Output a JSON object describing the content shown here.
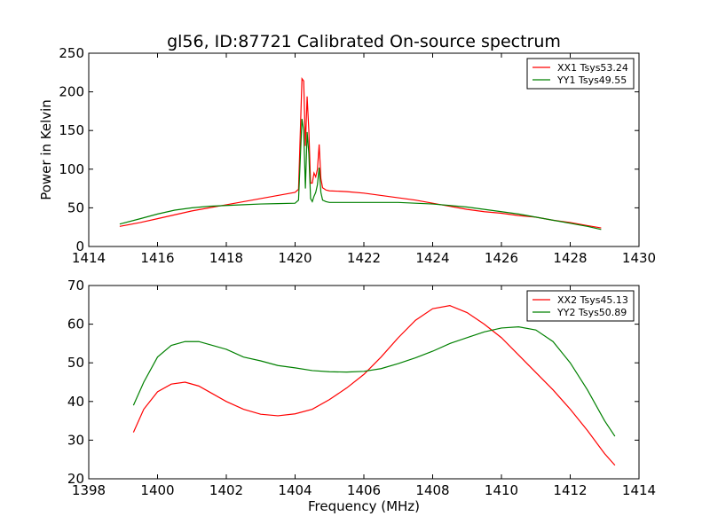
{
  "figure": {
    "title": "gl56, ID:87721 Calibrated On-source spectrum",
    "ylabel": "Power in Kelvin",
    "xlabel": "Frequency (MHz)"
  },
  "chart_data": [
    {
      "type": "line",
      "title": "gl56, ID:87721 Calibrated On-source spectrum",
      "xlabel": "",
      "ylabel": "Power in Kelvin",
      "xlim": [
        1414,
        1430
      ],
      "ylim": [
        0,
        250
      ],
      "xticks": [
        1414,
        1416,
        1418,
        1420,
        1422,
        1424,
        1426,
        1428,
        1430
      ],
      "yticks": [
        0,
        50,
        100,
        150,
        200,
        250
      ],
      "grid": false,
      "legend_position": "top-right",
      "series": [
        {
          "name": "XX1 Tsys53.24",
          "color": "#ff0000",
          "x": [
            1414.9,
            1415.5,
            1416.0,
            1416.5,
            1417.0,
            1417.5,
            1418.0,
            1418.5,
            1419.0,
            1419.5,
            1420.0,
            1420.1,
            1420.2,
            1420.25,
            1420.3,
            1420.35,
            1420.4,
            1420.45,
            1420.5,
            1420.55,
            1420.6,
            1420.65,
            1420.7,
            1420.75,
            1420.8,
            1420.9,
            1421.0,
            1421.5,
            1422.0,
            1422.5,
            1423.0,
            1423.5,
            1424.0,
            1424.5,
            1425.0,
            1425.5,
            1426.0,
            1426.5,
            1427.0,
            1427.5,
            1428.0,
            1428.5,
            1428.9
          ],
          "values": [
            26,
            31,
            36,
            41,
            46,
            50,
            54,
            58,
            62,
            66,
            70,
            74,
            217,
            214,
            130,
            194,
            150,
            82,
            82,
            95,
            90,
            100,
            132,
            88,
            76,
            73,
            72,
            71,
            69,
            66,
            63,
            60,
            56,
            52,
            48,
            45,
            43,
            40,
            38,
            34,
            31,
            27,
            24
          ]
        },
        {
          "name": "YY1 Tsys49.55",
          "color": "#008000",
          "x": [
            1414.9,
            1415.5,
            1416.0,
            1416.5,
            1417.0,
            1417.5,
            1418.0,
            1418.5,
            1419.0,
            1419.5,
            1420.0,
            1420.1,
            1420.2,
            1420.25,
            1420.3,
            1420.35,
            1420.4,
            1420.45,
            1420.5,
            1420.55,
            1420.6,
            1420.65,
            1420.7,
            1420.75,
            1420.8,
            1420.9,
            1421.0,
            1421.5,
            1422.0,
            1422.5,
            1423.0,
            1423.5,
            1424.0,
            1424.5,
            1425.0,
            1425.5,
            1426.0,
            1426.5,
            1427.0,
            1427.5,
            1428.0,
            1428.5,
            1428.9
          ],
          "values": [
            29,
            36,
            42,
            47,
            50,
            52,
            53,
            54,
            55,
            55.5,
            56,
            60,
            165,
            150,
            75,
            148,
            120,
            62,
            58,
            65,
            70,
            80,
            102,
            70,
            60,
            58,
            57,
            57,
            57,
            57,
            57,
            56,
            55,
            53,
            51,
            48,
            45,
            42,
            38,
            34,
            30,
            26,
            22
          ]
        }
      ]
    },
    {
      "type": "line",
      "title": "",
      "xlabel": "Frequency (MHz)",
      "ylabel": "",
      "xlim": [
        1398,
        1414
      ],
      "ylim": [
        20,
        70
      ],
      "xticks": [
        1398,
        1400,
        1402,
        1404,
        1406,
        1408,
        1410,
        1412,
        1414
      ],
      "yticks": [
        20,
        30,
        40,
        50,
        60,
        70
      ],
      "grid": false,
      "legend_position": "top-right",
      "series": [
        {
          "name": "XX2 Tsys45.13",
          "color": "#ff0000",
          "x": [
            1399.3,
            1399.6,
            1400.0,
            1400.4,
            1400.8,
            1401.2,
            1401.6,
            1402.0,
            1402.5,
            1403.0,
            1403.5,
            1404.0,
            1404.5,
            1405.0,
            1405.5,
            1406.0,
            1406.5,
            1407.0,
            1407.5,
            1408.0,
            1408.5,
            1409.0,
            1409.5,
            1410.0,
            1410.5,
            1411.0,
            1411.5,
            1412.0,
            1412.5,
            1413.0,
            1413.3
          ],
          "values": [
            32,
            38,
            42.5,
            44.5,
            45,
            44,
            42,
            40,
            38,
            36.7,
            36.3,
            36.8,
            38,
            40.5,
            43.5,
            47,
            51.5,
            56.5,
            61,
            64,
            64.8,
            63,
            60,
            56.5,
            52,
            47.5,
            43,
            38,
            32.5,
            26.5,
            23.5
          ]
        },
        {
          "name": "YY2 Tsys50.89",
          "color": "#008000",
          "x": [
            1399.3,
            1399.6,
            1400.0,
            1400.4,
            1400.8,
            1401.2,
            1401.6,
            1402.0,
            1402.5,
            1403.0,
            1403.5,
            1404.0,
            1404.5,
            1405.0,
            1405.5,
            1406.0,
            1406.5,
            1407.0,
            1407.5,
            1408.0,
            1408.5,
            1409.0,
            1409.5,
            1410.0,
            1410.5,
            1411.0,
            1411.5,
            1412.0,
            1412.5,
            1413.0,
            1413.3
          ],
          "values": [
            39,
            45,
            51.5,
            54.5,
            55.5,
            55.5,
            54.5,
            53.5,
            51.5,
            50.5,
            49.3,
            48.7,
            48,
            47.7,
            47.6,
            47.8,
            48.5,
            49.8,
            51.3,
            53,
            55,
            56.5,
            58,
            59,
            59.3,
            58.5,
            55.5,
            50,
            43,
            35,
            31
          ]
        }
      ]
    }
  ]
}
